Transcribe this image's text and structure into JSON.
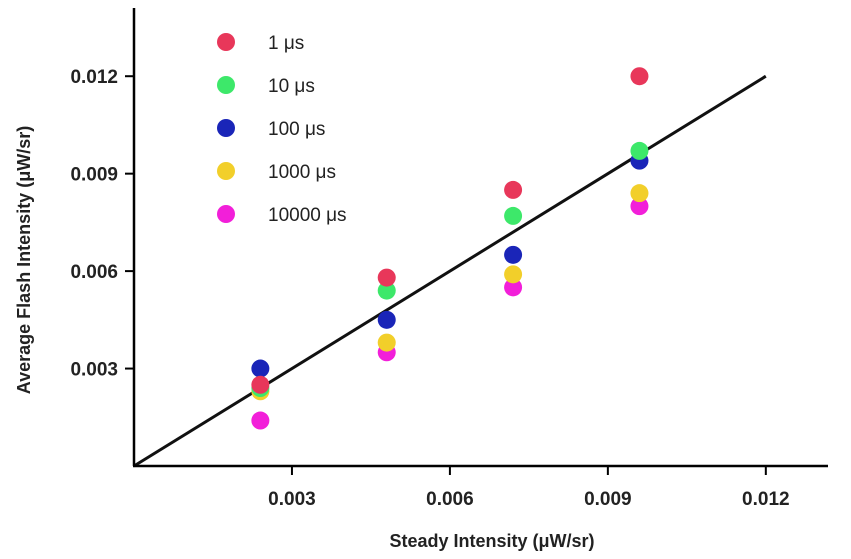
{
  "chart_data": {
    "type": "scatter",
    "title": "",
    "xlabel": "Steady Intensity (μW/sr)",
    "ylabel": "Average Flash Intensity (μW/sr)",
    "xlim": [
      0,
      0.0132
    ],
    "ylim": [
      0,
      0.0141
    ],
    "x_ticks": [
      0.003,
      0.006,
      0.009,
      0.012
    ],
    "x_tick_labels": [
      "0.003",
      "0.006",
      "0.009",
      "0.012"
    ],
    "y_ticks": [
      0.003,
      0.006,
      0.009,
      0.012
    ],
    "y_tick_labels": [
      "0.003",
      "0.006",
      "0.009",
      "0.012"
    ],
    "grid": false,
    "legend_position": "top-left",
    "x": [
      0.0024,
      0.0048,
      0.0072,
      0.0096
    ],
    "series": [
      {
        "name": "1 μs",
        "color": "#e8375a",
        "values": [
          0.0025,
          0.0058,
          0.0085,
          0.012
        ]
      },
      {
        "name": "10 μs",
        "color": "#3de86a",
        "values": [
          0.0024,
          0.0054,
          0.0077,
          0.0097
        ]
      },
      {
        "name": "100 μs",
        "color": "#1a25b8",
        "values": [
          0.003,
          0.0045,
          0.0065,
          0.0094
        ]
      },
      {
        "name": "1000 μs",
        "color": "#f2cf2a",
        "values": [
          0.0023,
          0.0038,
          0.0059,
          0.0084
        ]
      },
      {
        "name": "10000 μs",
        "color": "#f21fd9",
        "values": [
          0.0014,
          0.0035,
          0.0055,
          0.008
        ]
      }
    ],
    "fit_line": {
      "x": [
        0,
        0.012
      ],
      "y": [
        0,
        0.012
      ],
      "color": "#111111"
    }
  }
}
